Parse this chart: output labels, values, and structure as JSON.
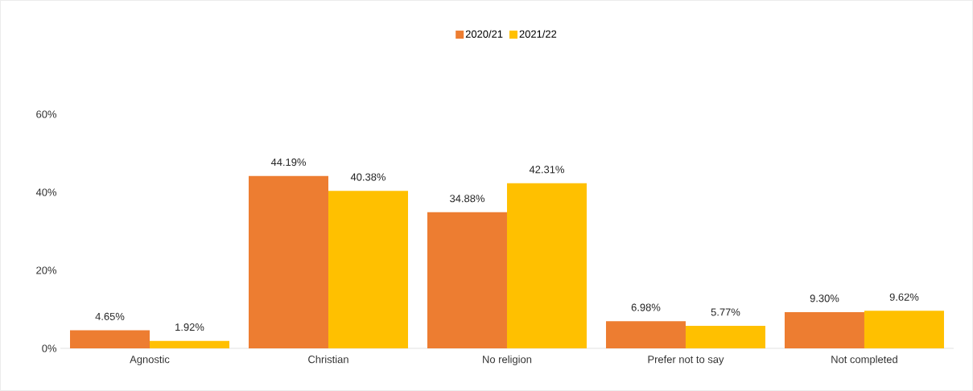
{
  "chart_data": {
    "type": "bar",
    "categories": [
      "Agnostic",
      "Christian",
      "No religion",
      "Prefer not to say",
      "Not completed"
    ],
    "series": [
      {
        "name": "2020/21",
        "color": "#ed7d31",
        "values": [
          4.65,
          44.19,
          34.88,
          6.98,
          9.3
        ],
        "value_labels": [
          "4.65%",
          "44.19%",
          "34.88%",
          "6.98%",
          "9.30%"
        ]
      },
      {
        "name": "2021/22",
        "color": "#ffc000",
        "values": [
          1.92,
          40.38,
          42.31,
          5.77,
          9.62
        ],
        "value_labels": [
          "1.92%",
          "40.38%",
          "42.31%",
          "5.77%",
          "9.62%"
        ]
      }
    ],
    "ylim": [
      0,
      60
    ],
    "yticks": [
      {
        "value": 0,
        "label": "0%"
      },
      {
        "value": 20,
        "label": "20%"
      },
      {
        "value": 40,
        "label": "40%"
      },
      {
        "value": 60,
        "label": "60%"
      }
    ],
    "legend": "top",
    "grid": false
  }
}
